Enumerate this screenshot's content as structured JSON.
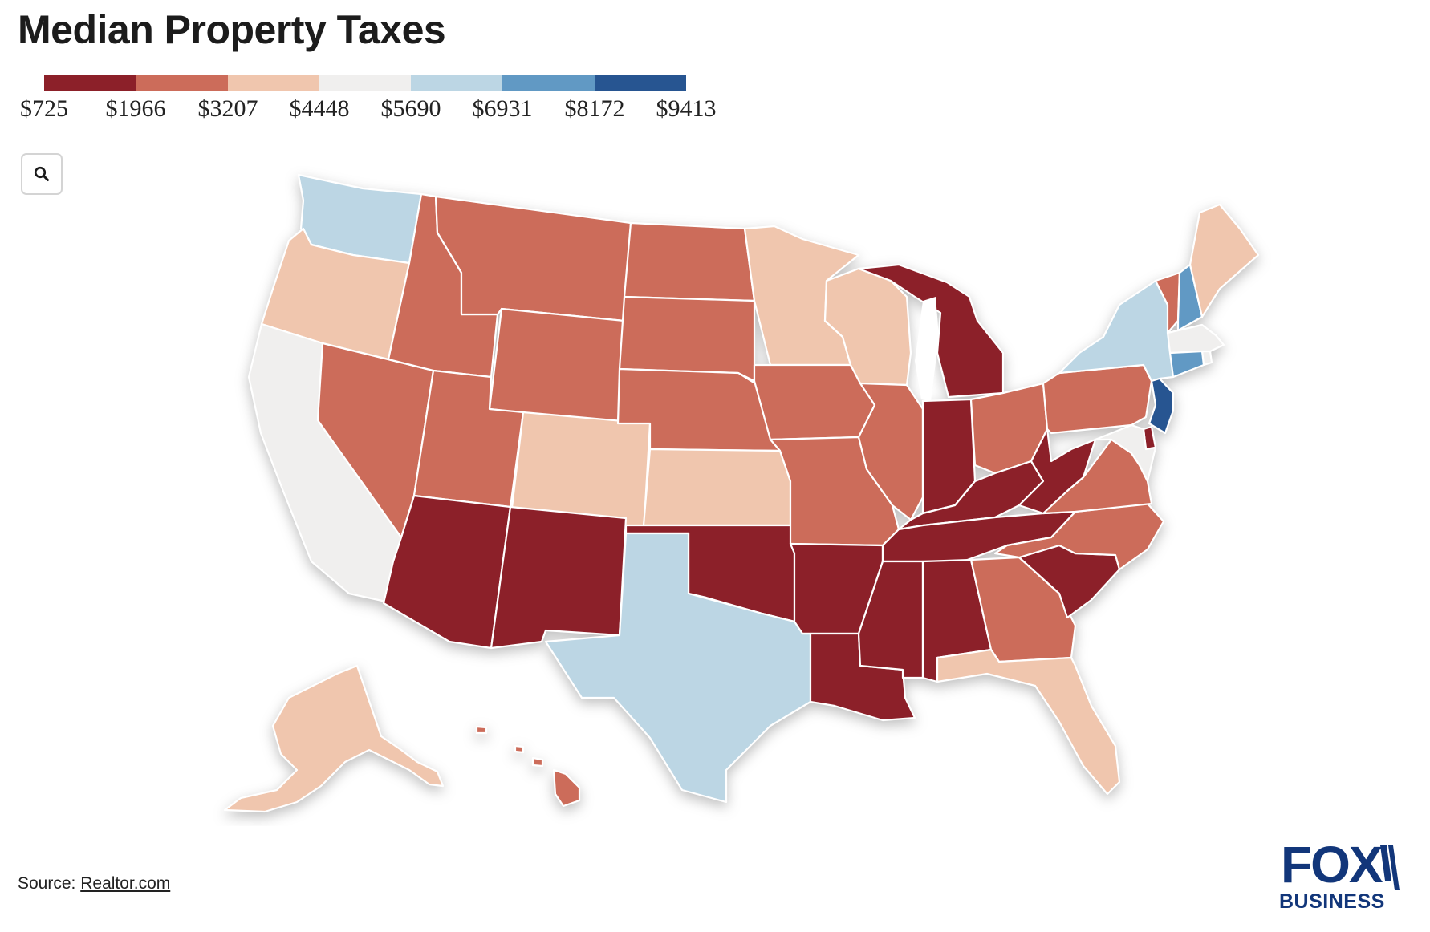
{
  "title": "Median Property Taxes",
  "legend": {
    "colors": [
      "#8c2029",
      "#cc6c5a",
      "#f0c6ae",
      "#f0efee",
      "#bcd6e4",
      "#6199c4",
      "#275591"
    ],
    "ticks": [
      "$725",
      "$1966",
      "$3207",
      "$4448",
      "$5690",
      "$6931",
      "$8172",
      "$9413"
    ]
  },
  "zoom_button": {
    "icon": "search-icon"
  },
  "map": {
    "type": "choropleth",
    "measure": "Median property taxes",
    "unit": "USD",
    "bins": [
      {
        "min": 725,
        "max": 1966,
        "color": "#8c2029"
      },
      {
        "min": 1966,
        "max": 3207,
        "color": "#cc6c5a"
      },
      {
        "min": 3207,
        "max": 4448,
        "color": "#f0c6ae"
      },
      {
        "min": 4448,
        "max": 5690,
        "color": "#f0efee"
      },
      {
        "min": 5690,
        "max": 6931,
        "color": "#bcd6e4"
      },
      {
        "min": 6931,
        "max": 8172,
        "color": "#6199c4"
      },
      {
        "min": 8172,
        "max": 9413,
        "color": "#275591"
      }
    ],
    "states": {
      "WA": 5,
      "OR": 3,
      "CA": 4,
      "NV": 2,
      "ID": 2,
      "MT": 2,
      "WY": 2,
      "UT": 2,
      "AZ": 1,
      "CO": 3,
      "NM": 1,
      "ND": 2,
      "SD": 2,
      "NE": 2,
      "KS": 3,
      "OK": 1,
      "TX": 5,
      "MN": 3,
      "IA": 2,
      "MO": 2,
      "AR": 1,
      "LA": 1,
      "WI": 3,
      "IL": 2,
      "MI": 1,
      "IN": 1,
      "OH": 2,
      "KY": 1,
      "TN": 1,
      "MS": 1,
      "AL": 1,
      "GA": 2,
      "FL": 3,
      "SC": 1,
      "NC": 2,
      "VA": 2,
      "WV": 1,
      "PA": 2,
      "NY": 5,
      "VT": 2,
      "NH": 6,
      "ME": 3,
      "MA": 4,
      "RI": 4,
      "CT": 6,
      "NJ": 7,
      "DE": 1,
      "MD": 4,
      "AK": 3,
      "HI": 2
    }
  },
  "source": {
    "label": "Source: ",
    "link": "Realtor.com"
  },
  "logo": {
    "top": "FOX",
    "bottom": "BUSINESS"
  }
}
